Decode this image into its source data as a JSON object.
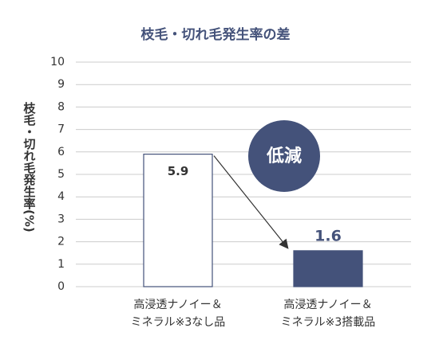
{
  "chart_data": {
    "type": "bar",
    "title": "枝毛・切れ毛発生率の差",
    "y_label": "枝毛・切れ毛発生率(%)",
    "categories": [
      [
        "高浸透ナノイー＆",
        "ミネラル※3なし品"
      ],
      [
        "高浸透ナノイー＆",
        "ミネラル※3搭載品"
      ]
    ],
    "values": [
      5.9,
      1.6
    ],
    "colors": [
      "#ffffff",
      "#44527a"
    ],
    "ylim": [
      0,
      10
    ],
    "yticks": [
      0,
      1,
      2,
      3,
      4,
      5,
      6,
      7,
      8,
      9,
      10
    ],
    "grid": true,
    "annotation": "低減"
  }
}
